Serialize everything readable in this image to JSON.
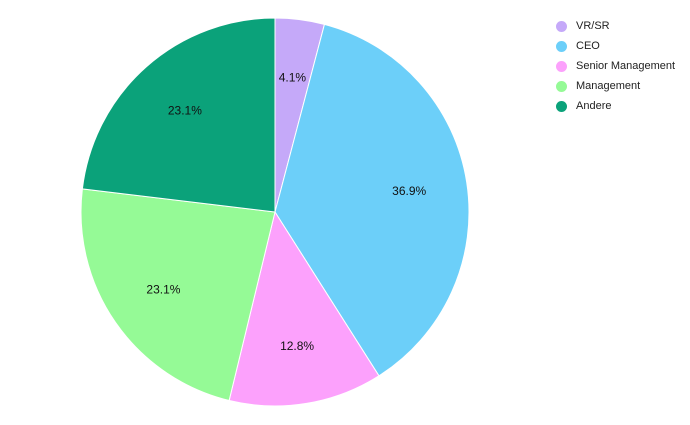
{
  "chart_data": {
    "type": "pie",
    "title": "",
    "legend": {
      "placement": "top-right"
    },
    "start_angle_deg": 0,
    "direction": "clockwise",
    "slices": [
      {
        "name": "VR/SR",
        "value": 4.1,
        "label": "4.1%",
        "color": "#c5a9f9"
      },
      {
        "name": "CEO",
        "value": 36.9,
        "label": "36.9%",
        "color": "#6ccff9"
      },
      {
        "name": "Senior Management",
        "value": 12.8,
        "label": "12.8%",
        "color": "#fca1fc"
      },
      {
        "name": "Management",
        "value": 23.1,
        "label": "23.1%",
        "color": "#95fa96"
      },
      {
        "name": "Andere",
        "value": 23.1,
        "label": "23.1%",
        "color": "#0ba27a"
      }
    ]
  }
}
